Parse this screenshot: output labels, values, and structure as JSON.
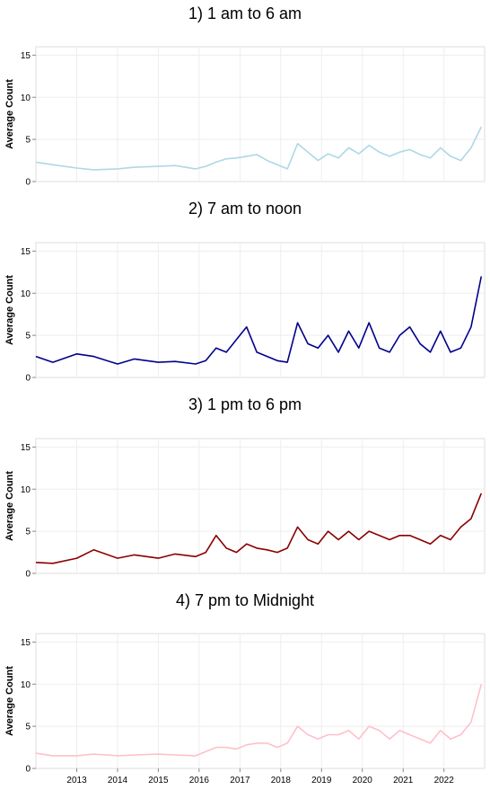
{
  "chart_data": [
    {
      "type": "line",
      "title": "1) 1 am to 6 am",
      "ylabel": "Average Count",
      "ylim": [
        0,
        16
      ],
      "yticks": [
        0,
        5,
        10,
        15
      ],
      "xlim": [
        "2012-01-01",
        "2022-12-31"
      ],
      "xticks": [],
      "grid": true,
      "color": "#add8e6",
      "series": [
        {
          "x": [
            "2012-01",
            "2012-06",
            "2013-01",
            "2013-06",
            "2014-01",
            "2014-06",
            "2015-01",
            "2015-06",
            "2015-12",
            "2016-03",
            "2016-06",
            "2016-09",
            "2016-12",
            "2017-03",
            "2017-06",
            "2017-09",
            "2017-12",
            "2018-03",
            "2018-06",
            "2018-09",
            "2018-12",
            "2019-03",
            "2019-06",
            "2019-09",
            "2019-12",
            "2020-03",
            "2020-06",
            "2020-09",
            "2020-12",
            "2021-03",
            "2021-06",
            "2021-09",
            "2021-12",
            "2022-03",
            "2022-06",
            "2022-09",
            "2022-12"
          ],
          "y": [
            2.3,
            2.0,
            1.6,
            1.4,
            1.5,
            1.7,
            1.8,
            1.9,
            1.5,
            1.8,
            2.3,
            2.7,
            2.8,
            3.0,
            3.2,
            2.5,
            2.0,
            1.5,
            4.5,
            3.5,
            2.5,
            3.3,
            2.8,
            4.0,
            3.3,
            4.3,
            3.5,
            3.0,
            3.5,
            3.8,
            3.2,
            2.8,
            4.0,
            3.0,
            2.5,
            4.0,
            6.5
          ]
        }
      ]
    },
    {
      "type": "line",
      "title": "2) 7 am to noon",
      "ylabel": "Average Count",
      "ylim": [
        0,
        16
      ],
      "yticks": [
        0,
        5,
        10,
        15
      ],
      "xlim": [
        "2012-01-01",
        "2022-12-31"
      ],
      "xticks": [],
      "grid": true,
      "color": "#00008b",
      "series": [
        {
          "x": [
            "2012-01",
            "2012-06",
            "2013-01",
            "2013-06",
            "2014-01",
            "2014-06",
            "2015-01",
            "2015-06",
            "2015-12",
            "2016-03",
            "2016-06",
            "2016-09",
            "2016-12",
            "2017-03",
            "2017-06",
            "2017-09",
            "2017-12",
            "2018-03",
            "2018-06",
            "2018-09",
            "2018-12",
            "2019-03",
            "2019-06",
            "2019-09",
            "2019-12",
            "2020-03",
            "2020-06",
            "2020-09",
            "2020-12",
            "2021-03",
            "2021-06",
            "2021-09",
            "2021-12",
            "2022-03",
            "2022-06",
            "2022-09",
            "2022-12"
          ],
          "y": [
            2.5,
            1.8,
            2.8,
            2.5,
            1.6,
            2.2,
            1.8,
            1.9,
            1.6,
            2.0,
            3.5,
            3.0,
            4.5,
            6.0,
            3.0,
            2.5,
            2.0,
            1.8,
            6.5,
            4.0,
            3.5,
            5.0,
            3.0,
            5.5,
            3.5,
            6.5,
            3.5,
            3.0,
            5.0,
            6.0,
            4.0,
            3.0,
            5.5,
            3.0,
            3.5,
            6.0,
            12.0
          ]
        }
      ]
    },
    {
      "type": "line",
      "title": "3) 1 pm to 6 pm",
      "ylabel": "Average Count",
      "ylim": [
        0,
        16
      ],
      "yticks": [
        0,
        5,
        10,
        15
      ],
      "xlim": [
        "2012-01-01",
        "2022-12-31"
      ],
      "xticks": [],
      "grid": true,
      "color": "#8b0000",
      "series": [
        {
          "x": [
            "2012-01",
            "2012-06",
            "2013-01",
            "2013-06",
            "2014-01",
            "2014-06",
            "2015-01",
            "2015-06",
            "2015-12",
            "2016-03",
            "2016-06",
            "2016-09",
            "2016-12",
            "2017-03",
            "2017-06",
            "2017-09",
            "2017-12",
            "2018-03",
            "2018-06",
            "2018-09",
            "2018-12",
            "2019-03",
            "2019-06",
            "2019-09",
            "2019-12",
            "2020-03",
            "2020-06",
            "2020-09",
            "2020-12",
            "2021-03",
            "2021-06",
            "2021-09",
            "2021-12",
            "2022-03",
            "2022-06",
            "2022-09",
            "2022-12"
          ],
          "y": [
            1.3,
            1.2,
            1.8,
            2.8,
            1.8,
            2.2,
            1.8,
            2.3,
            2.0,
            2.5,
            4.5,
            3.0,
            2.5,
            3.5,
            3.0,
            2.8,
            2.5,
            3.0,
            5.5,
            4.0,
            3.5,
            5.0,
            4.0,
            5.0,
            4.0,
            5.0,
            4.5,
            4.0,
            4.5,
            4.5,
            4.0,
            3.5,
            4.5,
            4.0,
            5.5,
            6.5,
            9.5
          ]
        }
      ]
    },
    {
      "type": "line",
      "title": "4) 7 pm to Midnight",
      "ylabel": "Average Count",
      "ylim": [
        0,
        16
      ],
      "yticks": [
        0,
        5,
        10,
        15
      ],
      "xlim": [
        "2012-01-01",
        "2022-12-31"
      ],
      "xticks": [
        "2013",
        "2014",
        "2015",
        "2016",
        "2017",
        "2018",
        "2019",
        "2020",
        "2021",
        "2022"
      ],
      "grid": true,
      "color": "#ffc0cb",
      "series": [
        {
          "x": [
            "2012-01",
            "2012-06",
            "2013-01",
            "2013-06",
            "2014-01",
            "2014-06",
            "2015-01",
            "2015-06",
            "2015-12",
            "2016-03",
            "2016-06",
            "2016-09",
            "2016-12",
            "2017-03",
            "2017-06",
            "2017-09",
            "2017-12",
            "2018-03",
            "2018-06",
            "2018-09",
            "2018-12",
            "2019-03",
            "2019-06",
            "2019-09",
            "2019-12",
            "2020-03",
            "2020-06",
            "2020-09",
            "2020-12",
            "2021-03",
            "2021-06",
            "2021-09",
            "2021-12",
            "2022-03",
            "2022-06",
            "2022-09",
            "2022-12"
          ],
          "y": [
            1.8,
            1.5,
            1.5,
            1.7,
            1.5,
            1.6,
            1.7,
            1.6,
            1.5,
            2.0,
            2.5,
            2.5,
            2.3,
            2.8,
            3.0,
            3.0,
            2.5,
            3.0,
            5.0,
            4.0,
            3.5,
            4.0,
            4.0,
            4.5,
            3.5,
            5.0,
            4.5,
            3.5,
            4.5,
            4.0,
            3.5,
            3.0,
            4.5,
            3.5,
            4.0,
            5.5,
            10.0
          ]
        }
      ]
    }
  ]
}
